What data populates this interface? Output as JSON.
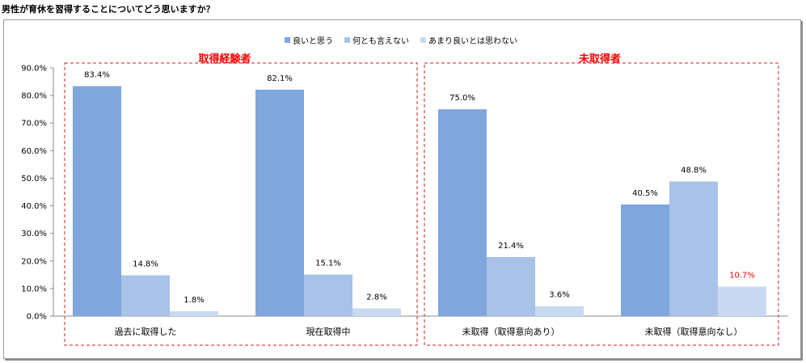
{
  "page_title": "男性が育休を習得することについてどう思いますか？",
  "colors": {
    "series": [
      "#7fa6dd",
      "#a8c2e8",
      "#c9d9f2"
    ],
    "highlight_label": "#ff0000",
    "group_box": "#cc2222"
  },
  "legend": [
    "良いと思う",
    "何とも言えない",
    "あまり良いとは思わない"
  ],
  "group_labels": {
    "experienced": "取得経験者",
    "not_acquired": "未取得者"
  },
  "chart_data": {
    "type": "bar",
    "title": "",
    "xlabel": "",
    "ylabel": "",
    "ylim": [
      0,
      90
    ],
    "y_ticks": [
      "0.0%",
      "10.0%",
      "20.0%",
      "30.0%",
      "40.0%",
      "50.0%",
      "60.0%",
      "70.0%",
      "80.0%",
      "90.0%"
    ],
    "categories": [
      "過去に取得した",
      "現在取得中",
      "未取得（取得意向あり）",
      "未取得（取得意向なし）"
    ],
    "series": [
      {
        "name": "良いと思う",
        "values": [
          83.4,
          82.1,
          75.0,
          40.5
        ],
        "labels": [
          "83.4%",
          "82.1%",
          "75.0%",
          "40.5%"
        ]
      },
      {
        "name": "何とも言えない",
        "values": [
          14.8,
          15.1,
          21.4,
          48.8
        ],
        "labels": [
          "14.8%",
          "15.1%",
          "21.4%",
          "48.8%"
        ]
      },
      {
        "name": "あまり良いとは思わない",
        "values": [
          1.8,
          2.8,
          3.6,
          10.7
        ],
        "labels": [
          "1.8%",
          "2.8%",
          "3.6%",
          "10.7%"
        ]
      }
    ],
    "highlighted_labels": [
      {
        "series": 2,
        "category": 3
      }
    ],
    "legend_position": "top",
    "grid": false
  }
}
